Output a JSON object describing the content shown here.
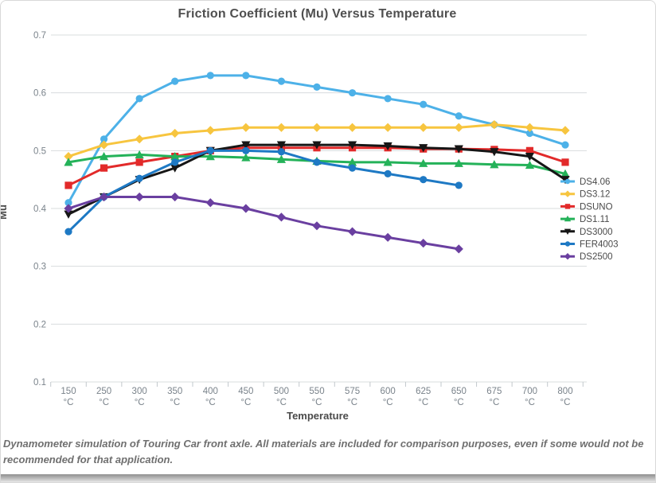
{
  "footer": {
    "note": "Dynamometer simulation of Touring Car front axle. All materials are included for comparison purposes, even if some would not be recommended for that application."
  },
  "chart_data": {
    "type": "line",
    "title": "Friction Coefficient (Mu) Versus Temperature",
    "xlabel": "Temperature",
    "ylabel": "Mu",
    "x_unit": "°C",
    "categories": [
      "150",
      "250",
      "300",
      "350",
      "400",
      "450",
      "500",
      "550",
      "575",
      "600",
      "625",
      "650",
      "675",
      "700",
      "800"
    ],
    "ylim": [
      0.1,
      0.7
    ],
    "yticks": [
      0.7,
      0.6,
      0.5,
      0.4,
      0.3,
      0.2,
      0.1
    ],
    "grid": true,
    "legend_position": "right",
    "series": [
      {
        "name": "DS4.06",
        "color": "#4db1e8",
        "marker": "circle",
        "values": [
          0.41,
          0.52,
          0.59,
          0.62,
          0.63,
          0.63,
          0.62,
          0.61,
          0.6,
          0.59,
          0.58,
          0.56,
          0.545,
          0.53,
          0.51
        ]
      },
      {
        "name": "DS3.12",
        "color": "#f7c53f",
        "marker": "diamond",
        "values": [
          0.49,
          0.51,
          0.52,
          0.53,
          0.535,
          0.54,
          0.54,
          0.54,
          0.54,
          0.54,
          0.54,
          0.54,
          0.545,
          0.54,
          0.535
        ]
      },
      {
        "name": "DSUNO",
        "color": "#e22a2a",
        "marker": "square",
        "values": [
          0.44,
          0.47,
          0.48,
          0.49,
          0.5,
          0.505,
          0.505,
          0.505,
          0.505,
          0.505,
          0.503,
          0.503,
          0.502,
          0.5,
          0.48
        ]
      },
      {
        "name": "DS1.11",
        "color": "#24b259",
        "marker": "triangle-up",
        "values": [
          0.48,
          0.49,
          0.493,
          0.49,
          0.49,
          0.488,
          0.485,
          0.482,
          0.48,
          0.48,
          0.478,
          0.478,
          0.476,
          0.475,
          0.46
        ]
      },
      {
        "name": "DS3000",
        "color": "#161616",
        "marker": "triangle-down",
        "values": [
          0.39,
          0.42,
          0.45,
          0.47,
          0.5,
          0.51,
          0.51,
          0.51,
          0.51,
          0.508,
          0.505,
          0.503,
          0.498,
          0.49,
          0.45
        ]
      },
      {
        "name": "FER4003",
        "color": "#1e79c4",
        "marker": "circle",
        "values": [
          0.36,
          0.42,
          0.452,
          0.48,
          0.5,
          0.5,
          0.498,
          0.48,
          0.47,
          0.46,
          0.45,
          0.44,
          null,
          null,
          null
        ]
      },
      {
        "name": "DS2500",
        "color": "#6a3fa0",
        "marker": "diamond",
        "values": [
          0.4,
          0.42,
          0.42,
          0.42,
          0.41,
          0.4,
          0.385,
          0.37,
          0.36,
          0.35,
          0.34,
          0.33,
          null,
          null,
          null
        ]
      }
    ]
  }
}
